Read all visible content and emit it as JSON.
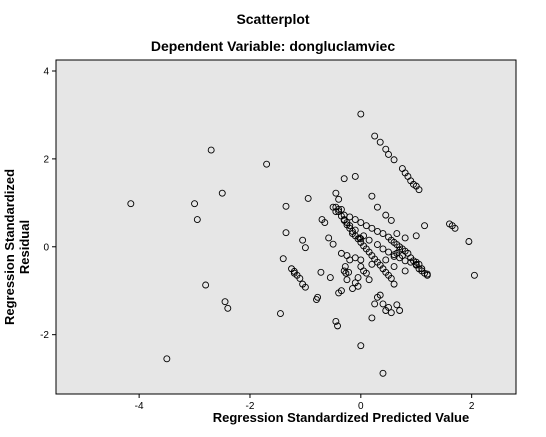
{
  "chart_data": {
    "type": "scatter",
    "title": "Scatterplot",
    "subtitle": "Dependent Variable: dongluclamviec",
    "xlabel": "Regression Standardized Predicted Value",
    "ylabel": "Regression Standardized Residual",
    "xlim": [
      -5.5,
      2.8
    ],
    "ylim": [
      -3.35,
      4.25
    ],
    "xticks": [
      -4,
      -2,
      0,
      2
    ],
    "yticks": [
      -2,
      0,
      2,
      4
    ],
    "xtick_labels": [
      "-4",
      "-2",
      "0",
      "2"
    ],
    "ytick_labels": [
      "-2",
      "0",
      "2",
      "4"
    ],
    "grid": false,
    "background_color": "#e6e6e6",
    "marker_color": "#000000",
    "x": [
      -4.15,
      -3.5,
      -2.95,
      -3.0,
      -2.8,
      -2.7,
      -2.5,
      -2.45,
      -2.4,
      -1.7,
      -1.45,
      -1.4,
      -1.35,
      -1.35,
      -1.25,
      -1.2,
      -1.2,
      -1.15,
      -1.1,
      -1.05,
      -1.05,
      -1.0,
      -1.0,
      -0.95,
      -0.8,
      -0.78,
      -0.72,
      -0.7,
      -0.65,
      -0.58,
      -0.55,
      -0.5,
      -0.45,
      -0.42,
      -0.4,
      -0.35,
      -0.3,
      -0.3,
      -0.28,
      -0.27,
      -0.25,
      -0.22,
      -0.2,
      -0.15,
      -0.1,
      -0.1,
      -0.05,
      -0.05,
      -0.02,
      0.0,
      0.0,
      0.05,
      0.1,
      0.15,
      0.2,
      0.25,
      0.3,
      0.35,
      0.4,
      0.45,
      0.5,
      0.55,
      0.6,
      0.65,
      0.7,
      0.75,
      -0.45,
      -0.4,
      -0.35,
      -0.3,
      -0.25,
      -0.2,
      -0.15,
      -0.1,
      -0.05,
      0.0,
      0.05,
      0.1,
      0.15,
      0.2,
      0.25,
      0.3,
      0.35,
      0.4,
      0.45,
      0.5,
      0.55,
      0.6,
      0.65,
      0.7,
      0.25,
      0.35,
      0.45,
      0.5,
      0.6,
      0.75,
      0.8,
      0.85,
      0.9,
      0.95,
      1.0,
      1.05,
      -0.45,
      -0.3,
      -0.2,
      -0.1,
      0.0,
      0.1,
      0.2,
      0.3,
      0.4,
      0.5,
      0.55,
      0.6,
      0.65,
      0.7,
      0.75,
      0.8,
      0.85,
      0.9,
      0.95,
      1.0,
      1.05,
      1.1,
      1.15,
      1.2,
      1.6,
      1.65,
      1.7,
      1.95,
      2.05,
      -0.5,
      -0.4,
      -0.3,
      -0.2,
      -0.1,
      0.05,
      0.15,
      0.3,
      0.4,
      0.5,
      0.6,
      0.7,
      0.8,
      0.9,
      1.0,
      1.1,
      1.2,
      -0.45,
      -0.4,
      -0.35,
      -0.25,
      -0.15,
      0.0,
      0.2,
      0.3,
      0.45,
      0.55,
      0.65,
      0.8,
      1.0,
      1.15,
      0.0,
      0.4,
      -0.35,
      -0.25,
      -0.1,
      0.0,
      0.2,
      0.45,
      0.6,
      0.8,
      1.0,
      1.05
    ],
    "y": [
      0.98,
      -2.55,
      0.62,
      0.98,
      -0.87,
      2.2,
      1.22,
      -1.25,
      -1.4,
      1.88,
      -1.52,
      -0.27,
      0.32,
      0.92,
      -0.5,
      -0.56,
      -0.6,
      -0.65,
      -0.72,
      -0.85,
      0.15,
      -0.92,
      -0.02,
      1.1,
      -1.2,
      -1.15,
      -0.58,
      0.62,
      0.55,
      0.2,
      -0.7,
      0.06,
      -1.7,
      -1.8,
      -1.05,
      -1.0,
      1.55,
      -0.55,
      -0.45,
      -0.6,
      -0.75,
      -0.58,
      -0.3,
      -0.95,
      -0.82,
      1.6,
      -0.7,
      -0.9,
      0.2,
      -2.25,
      -0.45,
      -0.55,
      -0.6,
      -0.75,
      -1.62,
      -1.3,
      -1.15,
      -1.1,
      -1.3,
      -1.45,
      -1.38,
      -1.5,
      -0.85,
      -1.32,
      -1.45,
      -0.2,
      0.9,
      0.8,
      0.7,
      0.6,
      0.5,
      0.42,
      0.35,
      0.25,
      0.18,
      0.1,
      0.02,
      -0.05,
      -0.12,
      -0.2,
      -0.28,
      -0.35,
      -0.42,
      -0.5,
      -0.58,
      -0.65,
      -0.72,
      -0.22,
      -0.15,
      -0.08,
      2.52,
      2.38,
      2.22,
      2.1,
      1.98,
      1.78,
      1.68,
      1.6,
      1.5,
      1.42,
      1.38,
      1.3,
      0.8,
      0.72,
      0.68,
      0.62,
      0.55,
      0.48,
      0.42,
      0.35,
      0.3,
      0.22,
      0.15,
      0.1,
      0.05,
      0.0,
      -0.05,
      -0.1,
      -0.15,
      -0.25,
      -0.32,
      -0.4,
      -0.5,
      -0.55,
      -0.6,
      -0.65,
      0.52,
      0.48,
      0.42,
      0.12,
      -0.65,
      0.9,
      0.85,
      0.62,
      0.48,
      0.38,
      0.25,
      0.15,
      0.05,
      -0.05,
      -0.12,
      -0.18,
      -0.25,
      -0.32,
      -0.35,
      -0.42,
      -0.5,
      -0.62,
      1.22,
      1.08,
      0.85,
      0.55,
      0.3,
      0.18,
      1.15,
      0.9,
      0.72,
      0.6,
      0.3,
      0.2,
      0.25,
      0.48,
      3.02,
      -2.88,
      -0.15,
      -0.2,
      -0.25,
      -0.3,
      -0.4,
      -0.3,
      -0.45,
      -0.55,
      -0.35,
      -0.4
    ]
  }
}
